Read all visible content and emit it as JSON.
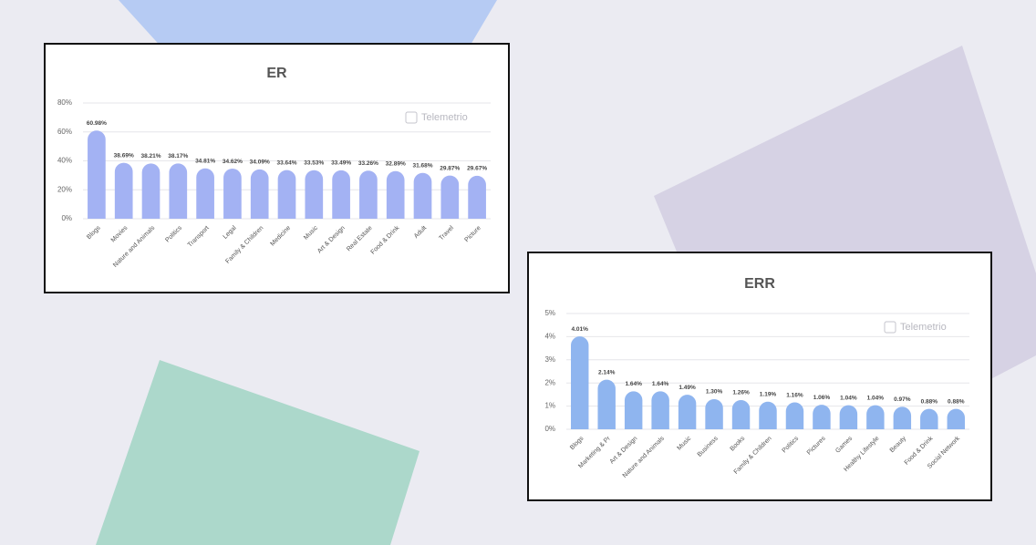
{
  "chart_data": [
    {
      "type": "bar",
      "title": "ER",
      "watermark": "Telemetrio",
      "categories": [
        "Blogs",
        "Movies",
        "Nature and Animals",
        "Politics",
        "Transport",
        "Legal",
        "Family & Children",
        "Medicine",
        "Music",
        "Art & Design",
        "Real Estate",
        "Food & Drink",
        "Adult",
        "Travel",
        "Picture"
      ],
      "values": [
        60.98,
        38.69,
        38.21,
        38.17,
        34.81,
        34.62,
        34.09,
        33.64,
        33.53,
        33.49,
        33.26,
        32.89,
        31.68,
        29.87,
        29.67
      ],
      "value_labels": [
        "60.98%",
        "38.69%",
        "38.21%",
        "38.17%",
        "34.81%",
        "34.62%",
        "34.09%",
        "33.64%",
        "33.53%",
        "33.49%",
        "33.26%",
        "32.89%",
        "31.68%",
        "29.87%",
        "29.67%"
      ],
      "color": "#a3b2f3",
      "ylim": [
        0,
        80
      ],
      "yticks": [
        {
          "value": 0,
          "label": "0%"
        },
        {
          "value": 20,
          "label": "20%"
        },
        {
          "value": 40,
          "label": "40%"
        },
        {
          "value": 60,
          "label": "60%"
        },
        {
          "value": 80,
          "label": "80%"
        }
      ],
      "grid": true
    },
    {
      "type": "bar",
      "title": "ERR",
      "watermark": "Telemetrio",
      "categories": [
        "Blogs",
        "Marketing & Pr",
        "Art & Design",
        "Nature and Animals",
        "Music",
        "Business",
        "Books",
        "Family & Children",
        "Politics",
        "Pictures",
        "Games",
        "Healthy Lifestyle",
        "Beauty",
        "Food & Drink",
        "Social Network"
      ],
      "values": [
        4.01,
        2.14,
        1.64,
        1.64,
        1.49,
        1.3,
        1.26,
        1.19,
        1.16,
        1.06,
        1.04,
        1.04,
        0.97,
        0.88,
        0.88
      ],
      "value_labels": [
        "4.01%",
        "2.14%",
        "1.64%",
        "1.64%",
        "1.49%",
        "1.30%",
        "1.26%",
        "1.19%",
        "1.16%",
        "1.06%",
        "1.04%",
        "1.04%",
        "0.97%",
        "0.88%",
        "0.88%"
      ],
      "color": "#8fb5ef",
      "ylim": [
        0,
        5
      ],
      "yticks": [
        {
          "value": 0,
          "label": "0%"
        },
        {
          "value": 1,
          "label": "1%"
        },
        {
          "value": 2,
          "label": "2%"
        },
        {
          "value": 3,
          "label": "3%"
        },
        {
          "value": 4,
          "label": "4%"
        },
        {
          "value": 5,
          "label": "5%"
        }
      ],
      "grid": true
    }
  ]
}
